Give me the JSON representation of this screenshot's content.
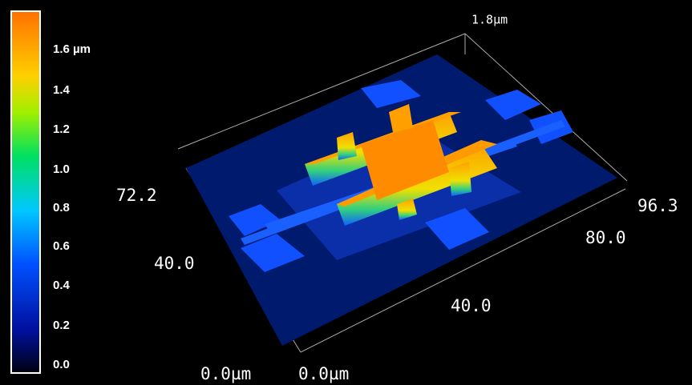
{
  "colorbar": {
    "labels": [
      "1.6 µm",
      "1.4",
      "1.2",
      "1.0",
      "0.8",
      "0.6",
      "0.4",
      "0.2",
      "0.0"
    ]
  },
  "z_axis": {
    "max_label": "1.8µm"
  },
  "y_axis": {
    "labels": [
      "72.2",
      "40.0",
      "0.0µm"
    ]
  },
  "x_axis": {
    "labels": [
      "0.0µm",
      "40.0",
      "80.0",
      "96.3"
    ]
  }
}
